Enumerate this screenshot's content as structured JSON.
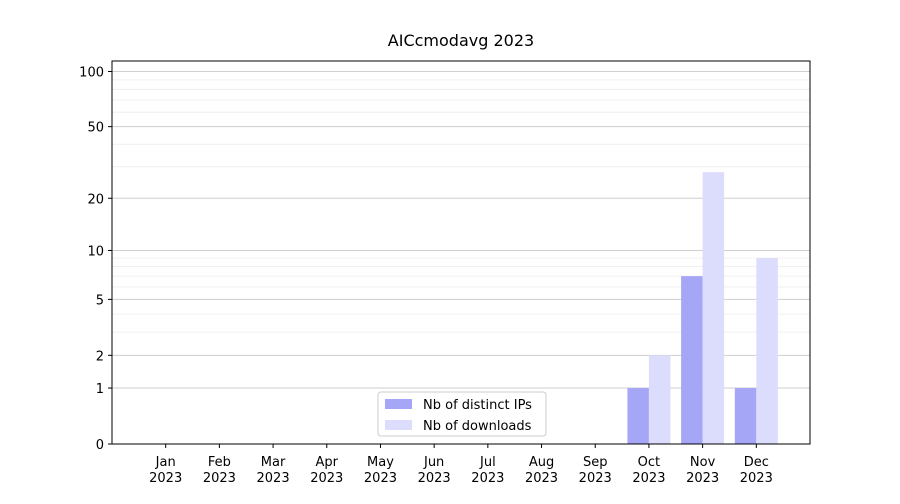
{
  "chart_data": {
    "type": "bar",
    "title": "AICcmodavg 2023",
    "categories": [
      "Jan\n2023",
      "Feb\n2023",
      "Mar\n2023",
      "Apr\n2023",
      "May\n2023",
      "Jun\n2023",
      "Jul\n2023",
      "Aug\n2023",
      "Sep\n2023",
      "Oct\n2023",
      "Nov\n2023",
      "Dec\n2023"
    ],
    "series": [
      {
        "name": "Nb of distinct IPs",
        "color": "#a6a6f6",
        "values": [
          0,
          0,
          0,
          0,
          0,
          0,
          0,
          0,
          0,
          1,
          7,
          1
        ]
      },
      {
        "name": "Nb of downloads",
        "color": "#dcdcfc",
        "values": [
          0,
          0,
          0,
          0,
          0,
          0,
          0,
          0,
          0,
          2,
          28,
          9
        ]
      }
    ],
    "yscale": "log1p",
    "ylim": [
      0,
      114
    ],
    "yticks": [
      0,
      1,
      2,
      5,
      10,
      20,
      50,
      100
    ],
    "minor_yticks": [
      3,
      4,
      6,
      7,
      8,
      9,
      30,
      40,
      60,
      70,
      80,
      90
    ],
    "grid": true,
    "legend": "lower center"
  }
}
